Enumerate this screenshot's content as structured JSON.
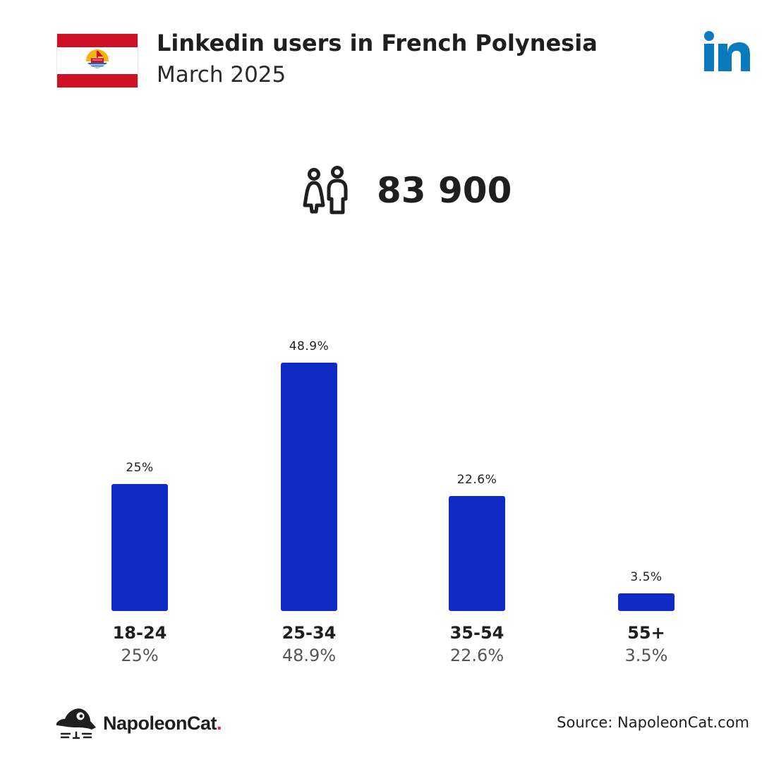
{
  "header": {
    "title": "Linkedin users in French Polynesia",
    "subtitle": "March 2025"
  },
  "total": {
    "value": "83 900",
    "icon": "people-icon"
  },
  "chart_data": {
    "type": "bar",
    "categories": [
      "18-24",
      "25-34",
      "35-54",
      "55+"
    ],
    "values": [
      25,
      48.9,
      22.6,
      3.5
    ],
    "bar_labels": [
      "25%",
      "48.9%",
      "22.6%",
      "3.5%"
    ],
    "value_labels": [
      "25%",
      "48.9%",
      "22.6%",
      "3.5%"
    ],
    "ylim": [
      0,
      48.9
    ],
    "grid": false,
    "bar_color": "#102ac4"
  },
  "colors": {
    "flag_red": "#ce1126",
    "linkedin_blue": "#0a7abf",
    "bar": "#102ac4"
  },
  "footer": {
    "brand_name": "NapoleonCat",
    "brand_dot": ".",
    "source": "Source: NapoleonCat.com"
  }
}
